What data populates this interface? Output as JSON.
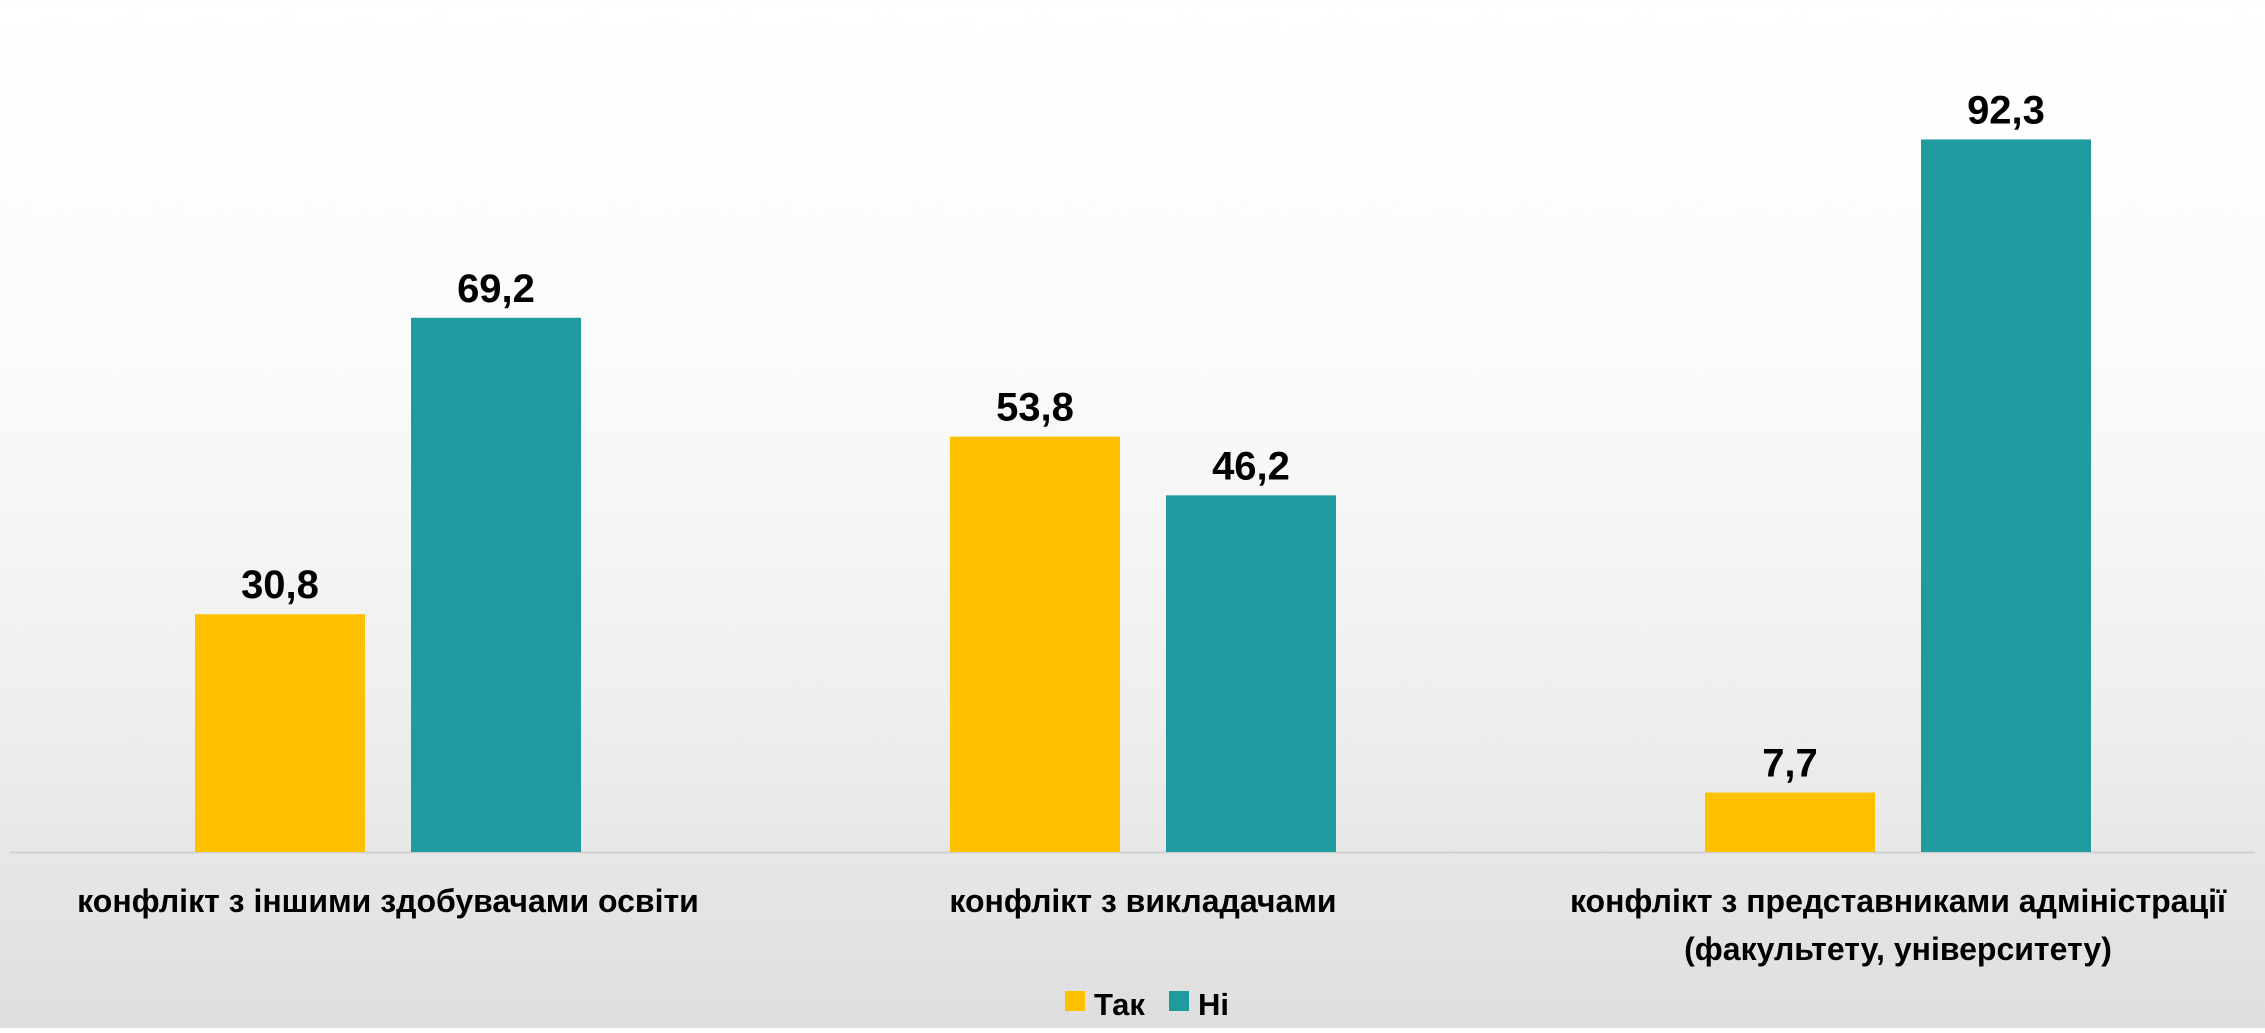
{
  "chart_data": {
    "type": "bar",
    "categories": [
      [
        "конфлікт з іншими здобувачами освіти"
      ],
      [
        "конфлікт з викладачами"
      ],
      [
        "конфлікт з представниками адміністрації",
        "(факультету, університету)"
      ]
    ],
    "series": [
      {
        "name": "Так",
        "values": [
          30.8,
          53.8,
          7.7
        ],
        "labels": [
          "30,8",
          "53,8",
          "7,7"
        ],
        "color": "#FFC000"
      },
      {
        "name": "Ні",
        "values": [
          69.2,
          46.2,
          92.3
        ],
        "labels": [
          "69,2",
          "46,2",
          "92,3"
        ],
        "color": "#1F9BA0"
      }
    ],
    "ylim": [
      0,
      100
    ],
    "grid": false,
    "legend_position": "bottom"
  }
}
